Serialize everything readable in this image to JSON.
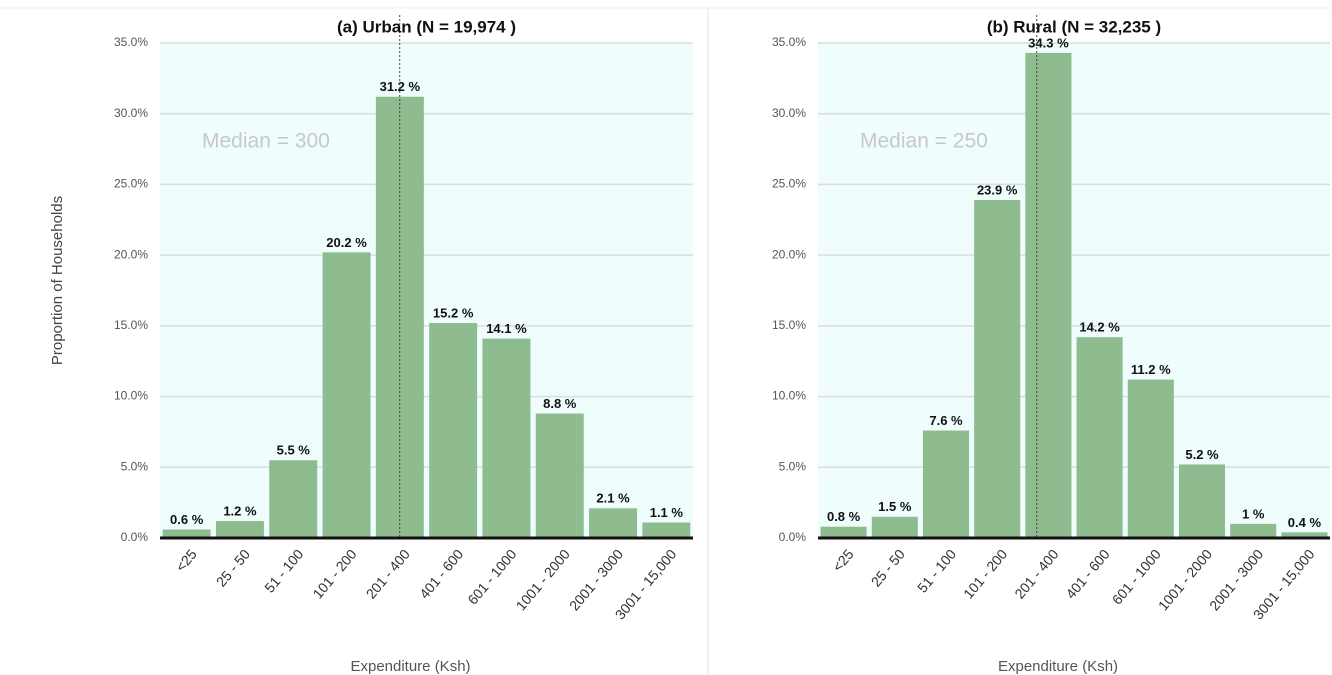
{
  "chart_data": [
    {
      "type": "bar",
      "title": "(a) Urban (N = 19,974 )",
      "y_label": "Proportion of Households",
      "x_label": "Expenditure (Ksh)",
      "categories": [
        "<25",
        "25 - 50",
        "51 - 100",
        "101 - 200",
        "201 - 400",
        "401 - 600",
        "601 - 1000",
        "1001 - 2000",
        "2001 - 3000",
        "3001 - 15,000"
      ],
      "values": [
        0.6,
        1.2,
        5.5,
        20.2,
        31.2,
        15.2,
        14.1,
        8.8,
        2.1,
        1.1
      ],
      "value_labels": [
        "0.6 %",
        "1.2 %",
        "5.5 %",
        "20.2 %",
        "31.2 %",
        "15.2 %",
        "14.1 %",
        "8.8 %",
        "2.1 %",
        "1.1 %"
      ],
      "color": "#8fbc8f",
      "ylim": [
        0,
        35
      ],
      "yticks": [
        {
          "value": 0,
          "label": "0.0%"
        },
        {
          "value": 5,
          "label": "5.0%"
        },
        {
          "value": 10,
          "label": "10.0%"
        },
        {
          "value": 15,
          "label": "15.0%"
        },
        {
          "value": 20,
          "label": "20.0%"
        },
        {
          "value": 25,
          "label": "25.0%"
        },
        {
          "value": 30,
          "label": "30.0%"
        },
        {
          "value": 35,
          "label": "35.0%"
        }
      ],
      "grid": true,
      "annotations": [
        {
          "text": "Median = 300",
          "x": 300
        }
      ]
    },
    {
      "type": "bar",
      "title": "(b) Rural (N = 32,235 )",
      "x_label": "Expenditure (Ksh)",
      "categories": [
        "<25",
        "25 - 50",
        "51 - 100",
        "101 - 200",
        "201 - 400",
        "401 - 600",
        "601 - 1000",
        "1001 - 2000",
        "2001 - 3000",
        "3001 - 15,000"
      ],
      "values": [
        0.8,
        1.5,
        7.6,
        23.9,
        34.3,
        14.2,
        11.2,
        5.2,
        1,
        0.4
      ],
      "value_labels": [
        "0.8 %",
        "1.5 %",
        "7.6 %",
        "23.9 %",
        "34.3 %",
        "14.2 %",
        "11.2 %",
        "5.2 %",
        "1 %",
        "0.4 %"
      ],
      "color": "#8fbc8f",
      "ylim": [
        0,
        35
      ],
      "yticks": [
        {
          "value": 0,
          "label": "0.0%"
        },
        {
          "value": 5,
          "label": "5.0%"
        },
        {
          "value": 10,
          "label": "10.0%"
        },
        {
          "value": 15,
          "label": "15.0%"
        },
        {
          "value": 20,
          "label": "20.0%"
        },
        {
          "value": 25,
          "label": "25.0%"
        },
        {
          "value": 30,
          "label": "30.0%"
        },
        {
          "value": 35,
          "label": "35.0%"
        }
      ],
      "grid": true,
      "annotations": [
        {
          "text": "Median = 250",
          "x": 250
        }
      ]
    }
  ]
}
